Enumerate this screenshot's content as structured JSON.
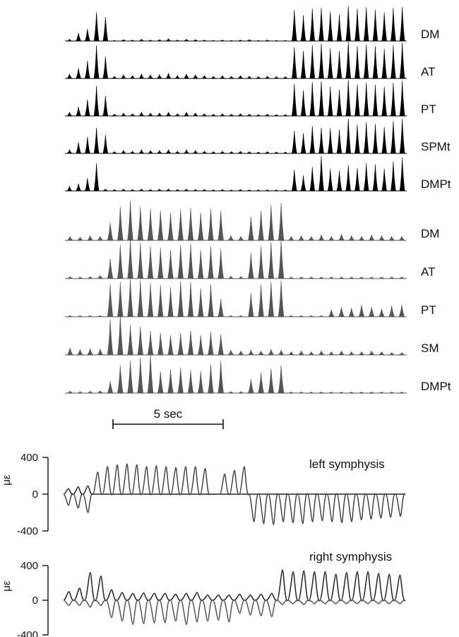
{
  "chart_data": {
    "type": "line",
    "scale_bar_label": "5 sec",
    "emg_left": {
      "color": "#000000",
      "channels": [
        {
          "name": "DM",
          "values": [
            0.05,
            0.22,
            0.33,
            0.78,
            0.65,
            0.02,
            0.04,
            0.03,
            0.05,
            0.03,
            0.04,
            0.06,
            0.03,
            0.05,
            0.04,
            0.03,
            0.02,
            0.03,
            0.02,
            0.03,
            0.04,
            0.02,
            0.03,
            0.02,
            0.02,
            0.85,
            0.7,
            0.88,
            0.9,
            0.8,
            0.72,
            0.95,
            0.88,
            0.92,
            0.85,
            0.78,
            0.9,
            0.93
          ]
        },
        {
          "name": "AT",
          "values": [
            0.12,
            0.28,
            0.48,
            0.9,
            0.6,
            0.06,
            0.1,
            0.08,
            0.12,
            0.1,
            0.1,
            0.14,
            0.08,
            0.12,
            0.1,
            0.08,
            0.06,
            0.08,
            0.06,
            0.08,
            0.06,
            0.05,
            0.06,
            0.05,
            0.05,
            0.85,
            0.75,
            0.9,
            0.95,
            0.82,
            0.75,
            1.0,
            0.88,
            0.92,
            0.88,
            0.8,
            0.9,
            0.98
          ]
        },
        {
          "name": "PT",
          "values": [
            0.1,
            0.25,
            0.45,
            0.82,
            0.55,
            0.05,
            0.08,
            0.06,
            0.1,
            0.08,
            0.08,
            0.1,
            0.06,
            0.1,
            0.08,
            0.06,
            0.05,
            0.06,
            0.05,
            0.06,
            0.05,
            0.04,
            0.05,
            0.04,
            0.04,
            0.88,
            0.7,
            0.92,
            0.95,
            0.8,
            0.72,
            0.98,
            0.86,
            0.9,
            0.85,
            0.8,
            0.9,
            0.96
          ]
        },
        {
          "name": "SPMt",
          "values": [
            0.1,
            0.3,
            0.45,
            0.7,
            0.5,
            0.05,
            0.08,
            0.06,
            0.1,
            0.08,
            0.08,
            0.1,
            0.06,
            0.1,
            0.08,
            0.06,
            0.05,
            0.06,
            0.05,
            0.06,
            0.05,
            0.04,
            0.05,
            0.04,
            0.04,
            0.62,
            0.55,
            0.75,
            0.7,
            0.68,
            0.65,
            0.95,
            0.78,
            0.85,
            0.8,
            0.72,
            0.88,
            0.94
          ]
        },
        {
          "name": "DMPt",
          "values": [
            0.12,
            0.2,
            0.35,
            0.75,
            0.05,
            0.04,
            0.05,
            0.04,
            0.05,
            0.04,
            0.05,
            0.05,
            0.04,
            0.05,
            0.04,
            0.04,
            0.03,
            0.04,
            0.03,
            0.04,
            0.03,
            0.03,
            0.03,
            0.03,
            0.03,
            0.58,
            0.42,
            0.65,
            0.95,
            0.6,
            0.55,
            0.7,
            0.62,
            0.75,
            0.72,
            0.6,
            0.8,
            0.9
          ]
        }
      ]
    },
    "emg_right": {
      "color": "#555555",
      "channels": [
        {
          "name": "DM",
          "values": [
            0.1,
            0.08,
            0.12,
            0.1,
            0.45,
            0.85,
            1.0,
            0.85,
            0.8,
            0.75,
            0.7,
            0.78,
            0.82,
            0.7,
            0.8,
            0.75,
            0.12,
            0.1,
            0.6,
            0.75,
            0.9,
            0.95,
            0.1,
            0.12,
            0.1,
            0.14,
            0.1,
            0.16,
            0.12,
            0.1,
            0.14,
            0.12,
            0.1,
            0.1
          ]
        },
        {
          "name": "AT",
          "values": [
            0.05,
            0.04,
            0.05,
            0.08,
            0.5,
            0.85,
            1.0,
            0.9,
            0.82,
            0.78,
            0.72,
            0.85,
            0.88,
            0.72,
            0.82,
            0.75,
            0.06,
            0.05,
            0.65,
            0.82,
            0.92,
            0.98,
            0.04,
            0.04,
            0.04,
            0.04,
            0.04,
            0.04,
            0.04,
            0.04,
            0.04,
            0.04,
            0.04,
            0.04
          ]
        },
        {
          "name": "PT",
          "values": [
            0.03,
            0.03,
            0.03,
            0.03,
            0.82,
            0.88,
            0.95,
            0.92,
            0.85,
            0.8,
            0.75,
            0.9,
            0.88,
            0.72,
            0.82,
            0.45,
            0.03,
            0.03,
            0.6,
            0.82,
            0.88,
            0.92,
            0.03,
            0.03,
            0.03,
            0.03,
            0.18,
            0.24,
            0.22,
            0.3,
            0.25,
            0.2,
            0.28,
            0.3
          ]
        },
        {
          "name": "SM",
          "values": [
            0.18,
            0.14,
            0.16,
            0.15,
            0.9,
            1.0,
            0.75,
            0.72,
            0.6,
            0.55,
            0.5,
            0.55,
            0.62,
            0.5,
            0.58,
            0.52,
            0.12,
            0.1,
            0.12,
            0.1,
            0.14,
            0.12,
            0.08,
            0.1,
            0.08,
            0.1,
            0.08,
            0.1,
            0.08,
            0.08,
            0.1,
            0.08,
            0.06,
            0.06
          ]
        },
        {
          "name": "DMPt",
          "values": [
            0.05,
            0.04,
            0.05,
            0.06,
            0.3,
            0.7,
            0.82,
            0.9,
            0.98,
            0.55,
            0.6,
            0.65,
            0.58,
            0.55,
            0.72,
            0.82,
            0.04,
            0.04,
            0.35,
            0.52,
            0.62,
            0.7,
            0.03,
            0.03,
            0.03,
            0.03,
            0.03,
            0.03,
            0.03,
            0.03,
            0.03,
            0.03,
            0.03,
            0.03
          ]
        }
      ]
    },
    "strain_plots": [
      {
        "title": "left symphysis",
        "ylabel": "με",
        "yticks": [
          400,
          0,
          -400
        ],
        "ylim": [
          -420,
          420
        ],
        "series": [
          {
            "values": [
              60,
              80,
              90,
              0,
              0,
              0,
              0,
              0,
              0,
              0,
              0,
              0,
              0,
              0,
              0,
              0,
              0,
              0,
              0,
              0,
              0,
              0,
              0,
              0,
              0,
              0,
              0,
              0,
              0,
              0,
              0,
              0,
              0,
              0,
              0
            ],
            "color": "#222222"
          },
          {
            "values": [
              -120,
              -150,
              -200,
              240,
              300,
              320,
              330,
              320,
              300,
              310,
              300,
              290,
              300,
              300,
              280,
              0,
              220,
              260,
              300,
              -300,
              -320,
              -330,
              -300,
              -310,
              -320,
              -300,
              -290,
              -300,
              -310,
              -300,
              -280,
              -270,
              -260,
              -250,
              -240
            ],
            "color": "#444444"
          }
        ]
      },
      {
        "title": "right symphysis",
        "ylabel": "με",
        "yticks": [
          400,
          0,
          -400
        ],
        "ylim": [
          -420,
          420
        ],
        "series": [
          {
            "values": [
              100,
              140,
              320,
              280,
              120,
              90,
              80,
              85,
              80,
              80,
              70,
              80,
              90,
              60,
              60,
              60,
              70,
              60,
              70,
              80,
              350,
              330,
              340,
              330,
              330,
              300,
              320,
              330,
              330,
              310,
              300,
              290
            ],
            "color": "#222222"
          },
          {
            "values": [
              -60,
              -60,
              -80,
              -60,
              -200,
              -240,
              -280,
              -270,
              -260,
              -260,
              -240,
              -280,
              -250,
              -240,
              -230,
              -250,
              -150,
              -170,
              -180,
              -190,
              -50,
              -40,
              -50,
              -40,
              -40,
              -40,
              -40,
              -40,
              -40,
              -40,
              -40,
              -40
            ],
            "color": "#555555"
          }
        ]
      }
    ]
  }
}
